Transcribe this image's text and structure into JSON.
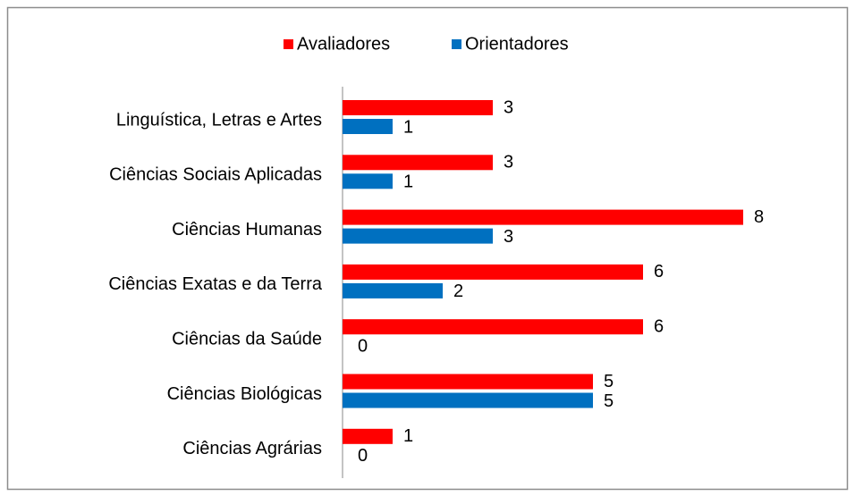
{
  "chart_data": {
    "type": "bar",
    "orientation": "horizontal",
    "categories": [
      "Linguística, Letras e Artes",
      "Ciências Sociais Aplicadas",
      "Ciências Humanas",
      "Ciências Exatas e da Terra",
      "Ciências da Saúde",
      "Ciências Biológicas",
      "Ciências Agrárias"
    ],
    "series": [
      {
        "name": "Avaliadores",
        "color": "#ff0000",
        "values": [
          3,
          3,
          8,
          6,
          6,
          5,
          1
        ]
      },
      {
        "name": "Orientadores",
        "color": "#0070c0",
        "values": [
          1,
          1,
          3,
          2,
          0,
          5,
          0
        ]
      }
    ],
    "legend": "top"
  }
}
